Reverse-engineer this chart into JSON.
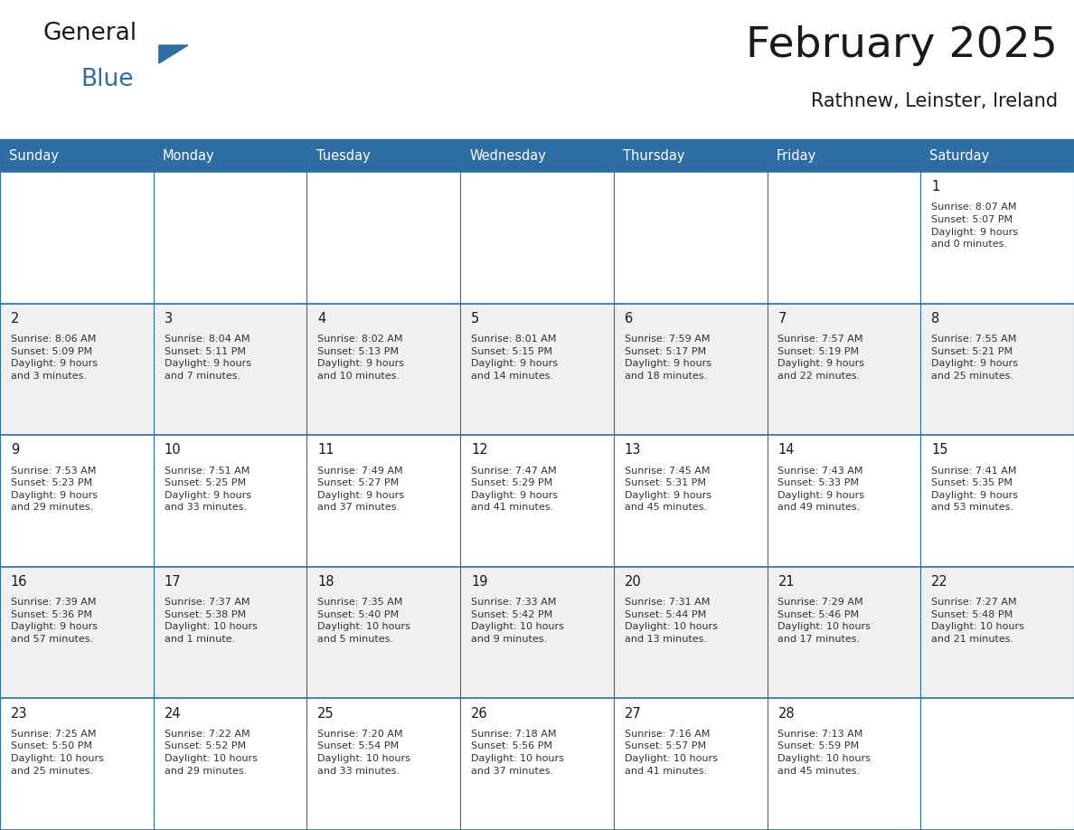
{
  "title": "February 2025",
  "subtitle": "Rathnew, Leinster, Ireland",
  "header_bg": "#2E6DA4",
  "header_text_color": "#FFFFFF",
  "cell_bg_odd": "#FFFFFF",
  "cell_bg_even": "#F0F0F0",
  "border_color": "#2E6DA4",
  "text_color": "#333333",
  "days_of_week": [
    "Sunday",
    "Monday",
    "Tuesday",
    "Wednesday",
    "Thursday",
    "Friday",
    "Saturday"
  ],
  "weeks": [
    [
      {
        "day": null,
        "info": null
      },
      {
        "day": null,
        "info": null
      },
      {
        "day": null,
        "info": null
      },
      {
        "day": null,
        "info": null
      },
      {
        "day": null,
        "info": null
      },
      {
        "day": null,
        "info": null
      },
      {
        "day": 1,
        "info": "Sunrise: 8:07 AM\nSunset: 5:07 PM\nDaylight: 9 hours\nand 0 minutes."
      }
    ],
    [
      {
        "day": 2,
        "info": "Sunrise: 8:06 AM\nSunset: 5:09 PM\nDaylight: 9 hours\nand 3 minutes."
      },
      {
        "day": 3,
        "info": "Sunrise: 8:04 AM\nSunset: 5:11 PM\nDaylight: 9 hours\nand 7 minutes."
      },
      {
        "day": 4,
        "info": "Sunrise: 8:02 AM\nSunset: 5:13 PM\nDaylight: 9 hours\nand 10 minutes."
      },
      {
        "day": 5,
        "info": "Sunrise: 8:01 AM\nSunset: 5:15 PM\nDaylight: 9 hours\nand 14 minutes."
      },
      {
        "day": 6,
        "info": "Sunrise: 7:59 AM\nSunset: 5:17 PM\nDaylight: 9 hours\nand 18 minutes."
      },
      {
        "day": 7,
        "info": "Sunrise: 7:57 AM\nSunset: 5:19 PM\nDaylight: 9 hours\nand 22 minutes."
      },
      {
        "day": 8,
        "info": "Sunrise: 7:55 AM\nSunset: 5:21 PM\nDaylight: 9 hours\nand 25 minutes."
      }
    ],
    [
      {
        "day": 9,
        "info": "Sunrise: 7:53 AM\nSunset: 5:23 PM\nDaylight: 9 hours\nand 29 minutes."
      },
      {
        "day": 10,
        "info": "Sunrise: 7:51 AM\nSunset: 5:25 PM\nDaylight: 9 hours\nand 33 minutes."
      },
      {
        "day": 11,
        "info": "Sunrise: 7:49 AM\nSunset: 5:27 PM\nDaylight: 9 hours\nand 37 minutes."
      },
      {
        "day": 12,
        "info": "Sunrise: 7:47 AM\nSunset: 5:29 PM\nDaylight: 9 hours\nand 41 minutes."
      },
      {
        "day": 13,
        "info": "Sunrise: 7:45 AM\nSunset: 5:31 PM\nDaylight: 9 hours\nand 45 minutes."
      },
      {
        "day": 14,
        "info": "Sunrise: 7:43 AM\nSunset: 5:33 PM\nDaylight: 9 hours\nand 49 minutes."
      },
      {
        "day": 15,
        "info": "Sunrise: 7:41 AM\nSunset: 5:35 PM\nDaylight: 9 hours\nand 53 minutes."
      }
    ],
    [
      {
        "day": 16,
        "info": "Sunrise: 7:39 AM\nSunset: 5:36 PM\nDaylight: 9 hours\nand 57 minutes."
      },
      {
        "day": 17,
        "info": "Sunrise: 7:37 AM\nSunset: 5:38 PM\nDaylight: 10 hours\nand 1 minute."
      },
      {
        "day": 18,
        "info": "Sunrise: 7:35 AM\nSunset: 5:40 PM\nDaylight: 10 hours\nand 5 minutes."
      },
      {
        "day": 19,
        "info": "Sunrise: 7:33 AM\nSunset: 5:42 PM\nDaylight: 10 hours\nand 9 minutes."
      },
      {
        "day": 20,
        "info": "Sunrise: 7:31 AM\nSunset: 5:44 PM\nDaylight: 10 hours\nand 13 minutes."
      },
      {
        "day": 21,
        "info": "Sunrise: 7:29 AM\nSunset: 5:46 PM\nDaylight: 10 hours\nand 17 minutes."
      },
      {
        "day": 22,
        "info": "Sunrise: 7:27 AM\nSunset: 5:48 PM\nDaylight: 10 hours\nand 21 minutes."
      }
    ],
    [
      {
        "day": 23,
        "info": "Sunrise: 7:25 AM\nSunset: 5:50 PM\nDaylight: 10 hours\nand 25 minutes."
      },
      {
        "day": 24,
        "info": "Sunrise: 7:22 AM\nSunset: 5:52 PM\nDaylight: 10 hours\nand 29 minutes."
      },
      {
        "day": 25,
        "info": "Sunrise: 7:20 AM\nSunset: 5:54 PM\nDaylight: 10 hours\nand 33 minutes."
      },
      {
        "day": 26,
        "info": "Sunrise: 7:18 AM\nSunset: 5:56 PM\nDaylight: 10 hours\nand 37 minutes."
      },
      {
        "day": 27,
        "info": "Sunrise: 7:16 AM\nSunset: 5:57 PM\nDaylight: 10 hours\nand 41 minutes."
      },
      {
        "day": 28,
        "info": "Sunrise: 7:13 AM\nSunset: 5:59 PM\nDaylight: 10 hours\nand 45 minutes."
      },
      {
        "day": null,
        "info": null
      }
    ]
  ],
  "figsize": [
    11.88,
    9.18
  ],
  "dpi": 100
}
